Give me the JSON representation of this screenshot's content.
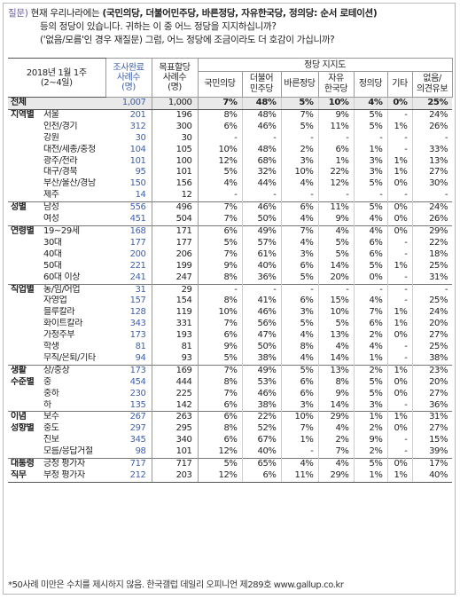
{
  "question": {
    "tag": "질문)",
    "line1_prefix": "현재 우리나라에는 ",
    "line1_bold": "(국민의당, 더불어민주당, 바른정당, 자유한국당, 정의당: 순서 로테이션)",
    "line2": "등의 정당이 있습니다. 귀하는 이 중 어느 정당을 지지하십니까?",
    "line3": "('없음/모름'인 경우 재질문) 그럼, 어느 정당에 조금이라도 더 호감이 가십니까?"
  },
  "header": {
    "date": "2018년 1월 1주",
    "date_sub": "(2~4일)",
    "completed": [
      "조사완료",
      "사례수",
      "(명)"
    ],
    "target": [
      "목표할당",
      "사례수",
      "(명)"
    ],
    "group": "정당 지지도",
    "parties": [
      [
        "국민의당"
      ],
      [
        "더불어",
        "민주당"
      ],
      [
        "바른정당"
      ],
      [
        "자유",
        "한국당"
      ],
      [
        "정의당"
      ],
      [
        "기타"
      ],
      [
        "없음/",
        "의견유보"
      ]
    ]
  },
  "rows": [
    {
      "cat": "전체",
      "sub": "",
      "n1": "1,007",
      "n2": "1,000",
      "v": [
        "7%",
        "48%",
        "5%",
        "10%",
        "4%",
        "0%",
        "25%"
      ],
      "total": true
    },
    {
      "cat": "지역별",
      "sub": "서울",
      "n1": "201",
      "n2": "196",
      "v": [
        "8%",
        "48%",
        "7%",
        "9%",
        "5%",
        "-",
        "24%"
      ]
    },
    {
      "cat": "",
      "sub": "인천/경기",
      "n1": "312",
      "n2": "300",
      "v": [
        "6%",
        "46%",
        "5%",
        "11%",
        "5%",
        "1%",
        "26%"
      ]
    },
    {
      "cat": "",
      "sub": "강원",
      "n1": "30",
      "n2": "30",
      "v": [
        "-",
        "-",
        "-",
        "-",
        "-",
        "-",
        "-"
      ]
    },
    {
      "cat": "",
      "sub": "대전/세종/충청",
      "n1": "104",
      "n2": "105",
      "v": [
        "10%",
        "48%",
        "2%",
        "6%",
        "1%",
        "-",
        "33%"
      ]
    },
    {
      "cat": "",
      "sub": "광주/전라",
      "n1": "101",
      "n2": "100",
      "v": [
        "12%",
        "68%",
        "3%",
        "1%",
        "3%",
        "1%",
        "13%"
      ]
    },
    {
      "cat": "",
      "sub": "대구/경북",
      "n1": "95",
      "n2": "101",
      "v": [
        "5%",
        "32%",
        "10%",
        "22%",
        "3%",
        "1%",
        "27%"
      ]
    },
    {
      "cat": "",
      "sub": "부산/울산/경남",
      "n1": "150",
      "n2": "156",
      "v": [
        "4%",
        "44%",
        "4%",
        "12%",
        "5%",
        "0%",
        "30%"
      ]
    },
    {
      "cat": "",
      "sub": "제주",
      "n1": "14",
      "n2": "12",
      "v": [
        "-",
        "-",
        "-",
        "-",
        "-",
        "-",
        "-"
      ]
    },
    {
      "cat": "성별",
      "sub": "남성",
      "n1": "556",
      "n2": "496",
      "v": [
        "7%",
        "46%",
        "6%",
        "11%",
        "5%",
        "0%",
        "24%"
      ],
      "sep": true
    },
    {
      "cat": "",
      "sub": "여성",
      "n1": "451",
      "n2": "504",
      "v": [
        "7%",
        "50%",
        "4%",
        "9%",
        "4%",
        "0%",
        "26%"
      ]
    },
    {
      "cat": "연령별",
      "sub": "19~29세",
      "n1": "168",
      "n2": "171",
      "v": [
        "6%",
        "49%",
        "7%",
        "4%",
        "4%",
        "0%",
        "29%"
      ],
      "sep": true
    },
    {
      "cat": "",
      "sub": "30대",
      "n1": "177",
      "n2": "177",
      "v": [
        "5%",
        "57%",
        "4%",
        "5%",
        "6%",
        "-",
        "22%"
      ]
    },
    {
      "cat": "",
      "sub": "40대",
      "n1": "200",
      "n2": "206",
      "v": [
        "7%",
        "61%",
        "3%",
        "5%",
        "6%",
        "-",
        "18%"
      ]
    },
    {
      "cat": "",
      "sub": "50대",
      "n1": "221",
      "n2": "199",
      "v": [
        "9%",
        "40%",
        "6%",
        "14%",
        "5%",
        "1%",
        "25%"
      ]
    },
    {
      "cat": "",
      "sub": "60대 이상",
      "n1": "241",
      "n2": "247",
      "v": [
        "8%",
        "36%",
        "5%",
        "20%",
        "0%",
        "-",
        "31%"
      ]
    },
    {
      "cat": "직업별",
      "sub": "농/임/어업",
      "n1": "31",
      "n2": "29",
      "v": [
        "-",
        "-",
        "-",
        "-",
        "-",
        "-",
        "-"
      ],
      "sep": true
    },
    {
      "cat": "",
      "sub": "자영업",
      "n1": "157",
      "n2": "154",
      "v": [
        "8%",
        "41%",
        "6%",
        "15%",
        "4%",
        "-",
        "25%"
      ]
    },
    {
      "cat": "",
      "sub": "블루칼라",
      "n1": "128",
      "n2": "119",
      "v": [
        "10%",
        "46%",
        "3%",
        "10%",
        "7%",
        "1%",
        "24%"
      ]
    },
    {
      "cat": "",
      "sub": "화이트칼라",
      "n1": "343",
      "n2": "331",
      "v": [
        "7%",
        "56%",
        "5%",
        "5%",
        "6%",
        "1%",
        "20%"
      ]
    },
    {
      "cat": "",
      "sub": "가정주부",
      "n1": "173",
      "n2": "193",
      "v": [
        "6%",
        "47%",
        "4%",
        "13%",
        "2%",
        "0%",
        "27%"
      ]
    },
    {
      "cat": "",
      "sub": "학생",
      "n1": "81",
      "n2": "81",
      "v": [
        "9%",
        "50%",
        "8%",
        "4%",
        "4%",
        "-",
        "25%"
      ]
    },
    {
      "cat": "",
      "sub": "무직/은퇴/기타",
      "n1": "94",
      "n2": "93",
      "v": [
        "5%",
        "38%",
        "4%",
        "14%",
        "1%",
        "-",
        "38%"
      ]
    },
    {
      "cat": "생활",
      "sub": "상/중상",
      "n1": "173",
      "n2": "169",
      "v": [
        "7%",
        "49%",
        "5%",
        "13%",
        "2%",
        "1%",
        "23%"
      ],
      "sep": true
    },
    {
      "cat": "수준별",
      "sub": "중",
      "n1": "454",
      "n2": "444",
      "v": [
        "8%",
        "53%",
        "6%",
        "8%",
        "5%",
        "0%",
        "20%"
      ]
    },
    {
      "cat": "",
      "sub": "중하",
      "n1": "230",
      "n2": "225",
      "v": [
        "7%",
        "46%",
        "6%",
        "9%",
        "5%",
        "0%",
        "27%"
      ]
    },
    {
      "cat": "",
      "sub": "하",
      "n1": "135",
      "n2": "142",
      "v": [
        "6%",
        "38%",
        "3%",
        "14%",
        "3%",
        "-",
        "36%"
      ]
    },
    {
      "cat": "이념",
      "sub": "보수",
      "n1": "267",
      "n2": "263",
      "v": [
        "6%",
        "22%",
        "10%",
        "29%",
        "1%",
        "1%",
        "31%"
      ],
      "sep": true
    },
    {
      "cat": "성향별",
      "sub": "중도",
      "n1": "297",
      "n2": "295",
      "v": [
        "8%",
        "52%",
        "7%",
        "4%",
        "2%",
        "0%",
        "27%"
      ]
    },
    {
      "cat": "",
      "sub": "진보",
      "n1": "345",
      "n2": "340",
      "v": [
        "6%",
        "67%",
        "1%",
        "2%",
        "9%",
        "-",
        "15%"
      ]
    },
    {
      "cat": "",
      "sub": "모름/응답거절",
      "n1": "98",
      "n2": "101",
      "v": [
        "12%",
        "40%",
        "-",
        "7%",
        "2%",
        "-",
        "39%"
      ]
    },
    {
      "cat": "대통령",
      "sub": "긍정 평가자",
      "n1": "717",
      "n2": "717",
      "v": [
        "5%",
        "65%",
        "4%",
        "4%",
        "5%",
        "0%",
        "17%"
      ],
      "sep": true
    },
    {
      "cat": "직무",
      "sub": "부정 평가자",
      "n1": "212",
      "n2": "203",
      "v": [
        "12%",
        "6%",
        "11%",
        "29%",
        "1%",
        "1%",
        "40%"
      ],
      "last": true
    }
  ],
  "footer": "*50사례 미만은 수치를 제시하지 않음. 한국갤럽 데일리 오피니언 제289호 www.gallup.co.kr"
}
